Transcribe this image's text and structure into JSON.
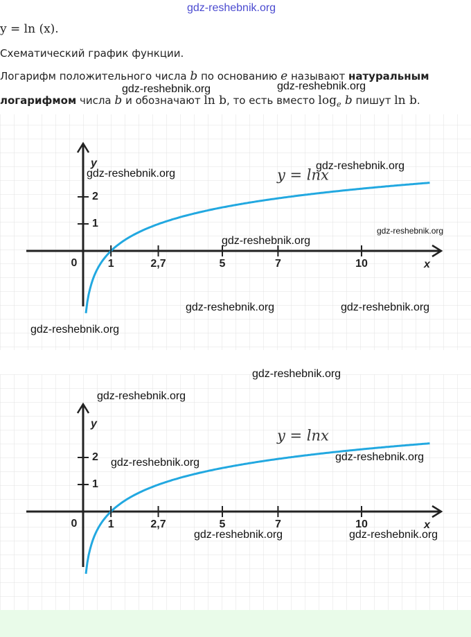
{
  "header": {
    "watermark": "gdz-reshebnik.org",
    "formula": "y = ln (x).",
    "caption": "Схематический график функции."
  },
  "paragraph": {
    "line1": [
      "Логарифм положительного числа ",
      "b",
      " по основанию ",
      "e",
      " называют ",
      "натуральным"
    ],
    "line2": [
      "логарифмом",
      " числа ",
      "b",
      " и обозначают ",
      "ln b",
      ", то есть вместо ",
      "log",
      "e",
      " b",
      " пишут ",
      "ln b",
      "."
    ]
  },
  "figures": [
    {
      "curve_label": "y = lnx",
      "x_axis_label": "x",
      "y_axis_label": "y",
      "x_tick_labels": [
        "0",
        "1",
        "2,7",
        "5",
        "7",
        "10"
      ],
      "y_tick_labels": [
        "1",
        "2"
      ]
    },
    {
      "curve_label": "y = lnx",
      "x_axis_label": "x",
      "y_axis_label": "y",
      "x_tick_labels": [
        "0",
        "1",
        "2,7",
        "5",
        "7",
        "10"
      ],
      "y_tick_labels": [
        "1",
        "2"
      ]
    }
  ],
  "watermarks": [
    "gdz-reshebnik.org",
    "gdz-reshebnik.org",
    "gdz-reshebnik.org",
    "gdz-reshebnik.org",
    "gdz-reshebnik.org",
    "gdz-reshebnik.org",
    "gdz-reshebnik.org",
    "gdz-reshebnik.org",
    "gdz-reshebnik.org",
    "gdz-reshebnik.org",
    "gdz-reshebnik.org",
    "gdz-reshebnik.org",
    "gdz-reshebnik.org",
    "gdz-reshebnik.org",
    "gdz-reshebnik.org"
  ]
}
